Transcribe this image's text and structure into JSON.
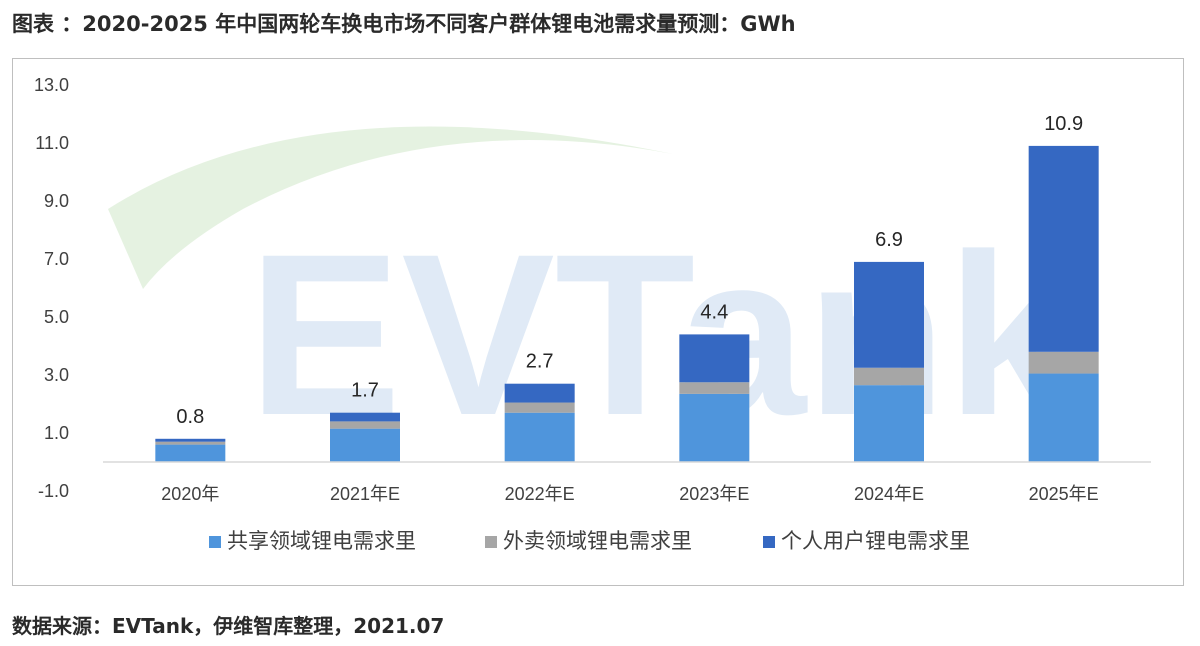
{
  "title": "图表 ：2020-2025 年中国两轮车换电市场不同客户群体锂电池需求量预测：GWh",
  "source": "数据来源：EVTank，伊维智库整理，2021.07",
  "watermark": "EVTank",
  "colors": {
    "shared": "#4f95dc",
    "delivery": "#a6a6a6",
    "personal": "#3568c2",
    "axis": "#d9d9d9",
    "text": "#404040"
  },
  "chart_data": {
    "type": "bar",
    "stacked": true,
    "categories": [
      "2020年",
      "2021年E",
      "2022年E",
      "2023年E",
      "2024年E",
      "2025年E"
    ],
    "series": [
      {
        "name": "共享领域锂电需求里",
        "values": [
          0.6,
          1.15,
          1.7,
          2.35,
          2.65,
          3.05
        ]
      },
      {
        "name": "外卖领域锂电需求里",
        "values": [
          0.1,
          0.25,
          0.35,
          0.4,
          0.6,
          0.75
        ]
      },
      {
        "name": "个人用户锂电需求里",
        "values": [
          0.1,
          0.3,
          0.65,
          1.65,
          3.65,
          7.1
        ]
      }
    ],
    "totals": [
      "0.8",
      "1.7",
      "2.7",
      "4.4",
      "6.9",
      "10.9"
    ],
    "yticks": [
      "-1.0",
      "1.0",
      "3.0",
      "5.0",
      "7.0",
      "9.0",
      "11.0",
      "13.0"
    ],
    "ylim": [
      -1,
      13
    ],
    "legend_position": "bottom",
    "grid": false
  }
}
